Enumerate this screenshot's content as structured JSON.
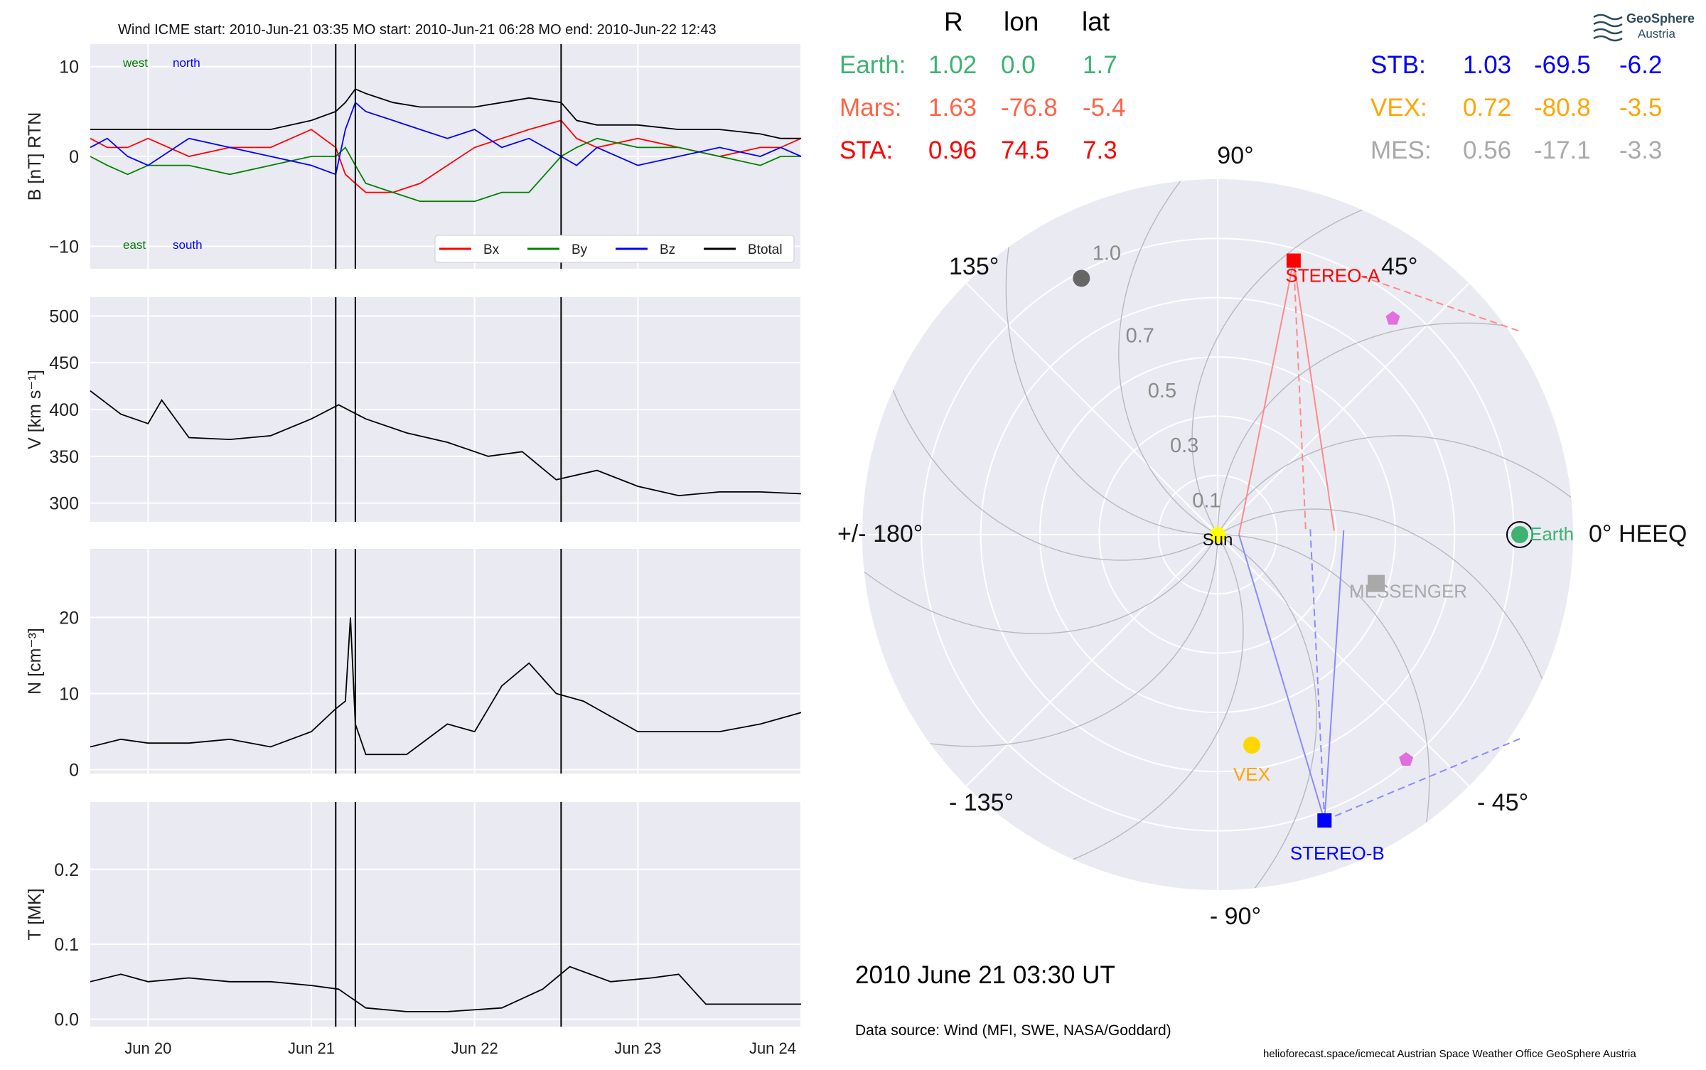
{
  "title": "Wind    ICME start: 2010-Jun-21 03:35   MO start: 2010-Jun-21 06:28   MO end: 2010-Jun-22 12:43",
  "logo": {
    "line1": "GeoSphere",
    "line2": "Austria"
  },
  "position_table": {
    "headers": [
      "R",
      "lon",
      "lat"
    ],
    "left": [
      {
        "name": "Earth:",
        "R": "1.02",
        "lon": "0.0",
        "lat": "1.7",
        "color": "#3cb371"
      },
      {
        "name": "Mars:",
        "R": "1.63",
        "lon": "-76.8",
        "lat": "-5.4",
        "color": "#ff6347"
      },
      {
        "name": "STA:",
        "R": "0.96",
        "lon": "74.5",
        "lat": "7.3",
        "color": "#ff0000"
      }
    ],
    "right": [
      {
        "name": "STB:",
        "R": "1.03",
        "lon": "-69.5",
        "lat": "-6.2",
        "color": "#0000ff"
      },
      {
        "name": "VEX:",
        "R": "0.72",
        "lon": "-80.8",
        "lat": "-3.5",
        "color": "#ffa500"
      },
      {
        "name": "MES:",
        "R": "0.56",
        "lon": "-17.1",
        "lat": "-3.3",
        "color": "#a9a9a9"
      }
    ]
  },
  "date_label": "2010 June 21  03:30 UT",
  "data_source": "Data source: Wind (MFI, SWE, NASA/Goddard)",
  "credits": "helioforecast.space/icmecat   Austrian Space Weather Office   GeoSphere Austria",
  "chart_data": [
    {
      "type": "line",
      "panel": "magnetic field",
      "ylabel": "B [nT] RTN",
      "ylim": [
        -12.5,
        12.5
      ],
      "yticks": [
        "10",
        "0",
        "−10"
      ],
      "x_tick_labels": [
        "Jun 20",
        "Jun 21",
        "Jun 22",
        "Jun 23",
        "Jun 24"
      ],
      "xlim": [
        "2010-06-19 15:30",
        "2010-06-24 00:00"
      ],
      "event_lines": [
        "2010-06-21 03:35",
        "2010-06-21 06:28",
        "2010-06-22 12:43"
      ],
      "annotations": {
        "west": "west",
        "north": "north",
        "east": "east",
        "south": "south"
      },
      "legend": "bottom-right",
      "grid": true,
      "x": [
        "2010-06-19 15:30",
        "2010-06-19 18:00",
        "2010-06-19 21:00",
        "2010-06-20 00:00",
        "2010-06-20 06:00",
        "2010-06-20 12:00",
        "2010-06-20 18:00",
        "2010-06-21 00:00",
        "2010-06-21 03:35",
        "2010-06-21 05:00",
        "2010-06-21 06:28",
        "2010-06-21 08:00",
        "2010-06-21 12:00",
        "2010-06-21 16:00",
        "2010-06-21 20:00",
        "2010-06-22 00:00",
        "2010-06-22 04:00",
        "2010-06-22 08:00",
        "2010-06-22 12:43",
        "2010-06-22 15:00",
        "2010-06-22 18:00",
        "2010-06-23 00:00",
        "2010-06-23 06:00",
        "2010-06-23 12:00",
        "2010-06-23 18:00",
        "2010-06-23 21:00",
        "2010-06-24 00:00"
      ],
      "series": [
        {
          "name": "Bx",
          "color": "#ff0000",
          "values": [
            2,
            1,
            1,
            2,
            0,
            1,
            1,
            3,
            1,
            -2,
            -3,
            -4,
            -4,
            -3,
            -1,
            1,
            2,
            3,
            4,
            2,
            1,
            2,
            1,
            0,
            1,
            1,
            2
          ]
        },
        {
          "name": "By",
          "color": "#008000",
          "values": [
            0,
            -1,
            -2,
            -1,
            -1,
            -2,
            -1,
            0,
            0,
            1,
            -1,
            -3,
            -4,
            -5,
            -5,
            -5,
            -4,
            -4,
            0,
            1,
            2,
            1,
            1,
            0,
            -1,
            0,
            0
          ]
        },
        {
          "name": "Bz",
          "color": "#0000ff",
          "values": [
            1,
            2,
            0,
            -1,
            2,
            1,
            0,
            -1,
            -2,
            3,
            6,
            5,
            4,
            3,
            2,
            3,
            1,
            2,
            0,
            -1,
            1,
            -1,
            0,
            1,
            0,
            1,
            0
          ]
        },
        {
          "name": "Btotal",
          "color": "#000000",
          "values": [
            3,
            3,
            3,
            3,
            3,
            3,
            3,
            4,
            5,
            6,
            7.5,
            7,
            6,
            5.5,
            5.5,
            5.5,
            6,
            6.5,
            6,
            4,
            3.5,
            3.5,
            3,
            3,
            2.5,
            2,
            2
          ]
        }
      ]
    },
    {
      "type": "line",
      "panel": "speed",
      "ylabel": "V [km s⁻¹]",
      "ylim": [
        280,
        520
      ],
      "yticks": [
        "500",
        "450",
        "400",
        "350",
        "300"
      ],
      "x_tick_labels": [
        "Jun 20",
        "Jun 21",
        "Jun 22",
        "Jun 23",
        "Jun 24"
      ],
      "grid": true,
      "x": [
        "2010-06-19 15:30",
        "2010-06-19 20:00",
        "2010-06-20 00:00",
        "2010-06-20 02:00",
        "2010-06-20 06:00",
        "2010-06-20 12:00",
        "2010-06-20 18:00",
        "2010-06-21 00:00",
        "2010-06-21 04:00",
        "2010-06-21 08:00",
        "2010-06-21 14:00",
        "2010-06-21 20:00",
        "2010-06-22 02:00",
        "2010-06-22 07:00",
        "2010-06-22 12:00",
        "2010-06-22 18:00",
        "2010-06-23 00:00",
        "2010-06-23 06:00",
        "2010-06-23 12:00",
        "2010-06-23 18:00",
        "2010-06-24 00:00"
      ],
      "values": [
        420,
        395,
        385,
        410,
        370,
        368,
        372,
        390,
        405,
        390,
        375,
        365,
        350,
        355,
        325,
        335,
        318,
        308,
        312,
        312,
        310
      ]
    },
    {
      "type": "line",
      "panel": "density",
      "ylabel": "N [cm⁻³]",
      "ylim": [
        -0.5,
        29
      ],
      "yticks": [
        "20",
        "10",
        "0"
      ],
      "x_tick_labels": [
        "Jun 20",
        "Jun 21",
        "Jun 22",
        "Jun 23",
        "Jun 24"
      ],
      "grid": true,
      "x": [
        "2010-06-19 15:30",
        "2010-06-19 20:00",
        "2010-06-20 00:00",
        "2010-06-20 06:00",
        "2010-06-20 12:00",
        "2010-06-20 18:00",
        "2010-06-21 00:00",
        "2010-06-21 03:35",
        "2010-06-21 05:00",
        "2010-06-21 05:45",
        "2010-06-21 06:28",
        "2010-06-21 08:00",
        "2010-06-21 14:00",
        "2010-06-21 20:00",
        "2010-06-22 00:00",
        "2010-06-22 04:00",
        "2010-06-22 08:00",
        "2010-06-22 12:00",
        "2010-06-22 16:00",
        "2010-06-23 00:00",
        "2010-06-23 06:00",
        "2010-06-23 12:00",
        "2010-06-23 18:00",
        "2010-06-24 00:00"
      ],
      "values": [
        3,
        4,
        3.5,
        3.5,
        4,
        3,
        5,
        8,
        9,
        20,
        6,
        2,
        2,
        6,
        5,
        11,
        14,
        10,
        9,
        5,
        5,
        5,
        6,
        7.5
      ]
    },
    {
      "type": "line",
      "panel": "temperature",
      "ylabel": "T [MK]",
      "ylim": [
        -0.01,
        0.29
      ],
      "yticks": [
        "0.2",
        "0.1",
        "0.0"
      ],
      "x_tick_labels": [
        "Jun 20",
        "Jun 21",
        "Jun 22",
        "Jun 23",
        "Jun 24"
      ],
      "grid": true,
      "x": [
        "2010-06-19 15:30",
        "2010-06-19 20:00",
        "2010-06-20 00:00",
        "2010-06-20 06:00",
        "2010-06-20 12:00",
        "2010-06-20 18:00",
        "2010-06-21 00:00",
        "2010-06-21 04:00",
        "2010-06-21 08:00",
        "2010-06-21 14:00",
        "2010-06-21 20:00",
        "2010-06-22 04:00",
        "2010-06-22 10:00",
        "2010-06-22 14:00",
        "2010-06-22 20:00",
        "2010-06-23 02:00",
        "2010-06-23 06:00",
        "2010-06-23 10:00",
        "2010-06-23 18:00",
        "2010-06-24 00:00"
      ],
      "values": [
        0.05,
        0.06,
        0.05,
        0.055,
        0.05,
        0.05,
        0.045,
        0.04,
        0.015,
        0.01,
        0.01,
        0.015,
        0.04,
        0.07,
        0.05,
        0.055,
        0.06,
        0.02,
        0.02,
        0.02
      ]
    },
    {
      "type": "scatter",
      "panel": "polar position plot (HEEQ)",
      "angle_labels": {
        "a90": "90°",
        "a45": "45°",
        "a0": "0° HEEQ",
        "am45": "- 45°",
        "am90": "- 90°",
        "am135": "- 135°",
        "a180": "+/- 180°",
        "a135": "135°"
      },
      "radial_ticks": [
        "0.1",
        "0.3",
        "0.5",
        "0.7",
        "1.0"
      ],
      "grid": true,
      "bodies": [
        {
          "name": "Sun",
          "r": 0.0,
          "lon": 0.0,
          "color": "#ffff00"
        },
        {
          "name": "Earth",
          "r": 1.02,
          "lon": 0.0,
          "color": "#3cb371"
        },
        {
          "name": "STEREO-A",
          "r": 0.96,
          "lon": 74.5,
          "color": "#ff0000"
        },
        {
          "name": "STEREO-B",
          "r": 1.03,
          "lon": -69.5,
          "color": "#0000ff"
        },
        {
          "name": "VEX",
          "r": 0.72,
          "lon": -80.8,
          "color": "#ffd700",
          "label_color": "#ffa500"
        },
        {
          "name": "MESSENGER",
          "r": 0.56,
          "lon": -17.1,
          "color": "#a9a9a9"
        },
        {
          "name": "",
          "r": 0.94,
          "lon": 51,
          "color": "#e070e0"
        },
        {
          "name": "",
          "r": 0.99,
          "lon": -50,
          "color": "#e070e0"
        },
        {
          "name": "",
          "r": 0.98,
          "lon": 118,
          "color": "#666666"
        }
      ]
    }
  ]
}
